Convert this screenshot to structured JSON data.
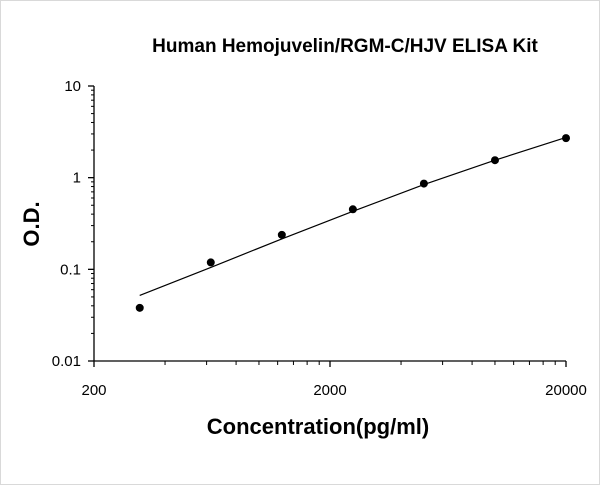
{
  "chart_data": {
    "type": "scatter",
    "title": "Human Hemojuvelin/RGM-C/HJV ELISA Kit",
    "xlabel": "Concentration(pg/ml)",
    "ylabel": "O.D.",
    "x_scale": "log",
    "y_scale": "log",
    "xlim": [
      200,
      20000
    ],
    "ylim": [
      0.01,
      10
    ],
    "x_ticks": [
      "200",
      "2000",
      "20000"
    ],
    "y_ticks": [
      "0.01",
      "0.1",
      "1",
      "10"
    ],
    "grid": false,
    "legend": "none",
    "colors": {
      "points": "#000000",
      "line": "#000000",
      "axis": "#000000"
    },
    "series": [
      {
        "points": [
          {
            "x": 312.5,
            "y": 0.038
          },
          {
            "x": 625,
            "y": 0.119
          },
          {
            "x": 1250,
            "y": 0.238
          },
          {
            "x": 2500,
            "y": 0.452
          },
          {
            "x": 5000,
            "y": 0.862
          },
          {
            "x": 10000,
            "y": 1.55
          },
          {
            "x": 20000,
            "y": 2.7
          }
        ],
        "fit": [
          {
            "x": 312.5,
            "y": 0.052
          },
          {
            "x": 625,
            "y": 0.105
          },
          {
            "x": 1250,
            "y": 0.215
          },
          {
            "x": 2500,
            "y": 0.43
          },
          {
            "x": 5000,
            "y": 0.84
          },
          {
            "x": 10000,
            "y": 1.55
          },
          {
            "x": 20000,
            "y": 2.75
          }
        ]
      }
    ]
  }
}
